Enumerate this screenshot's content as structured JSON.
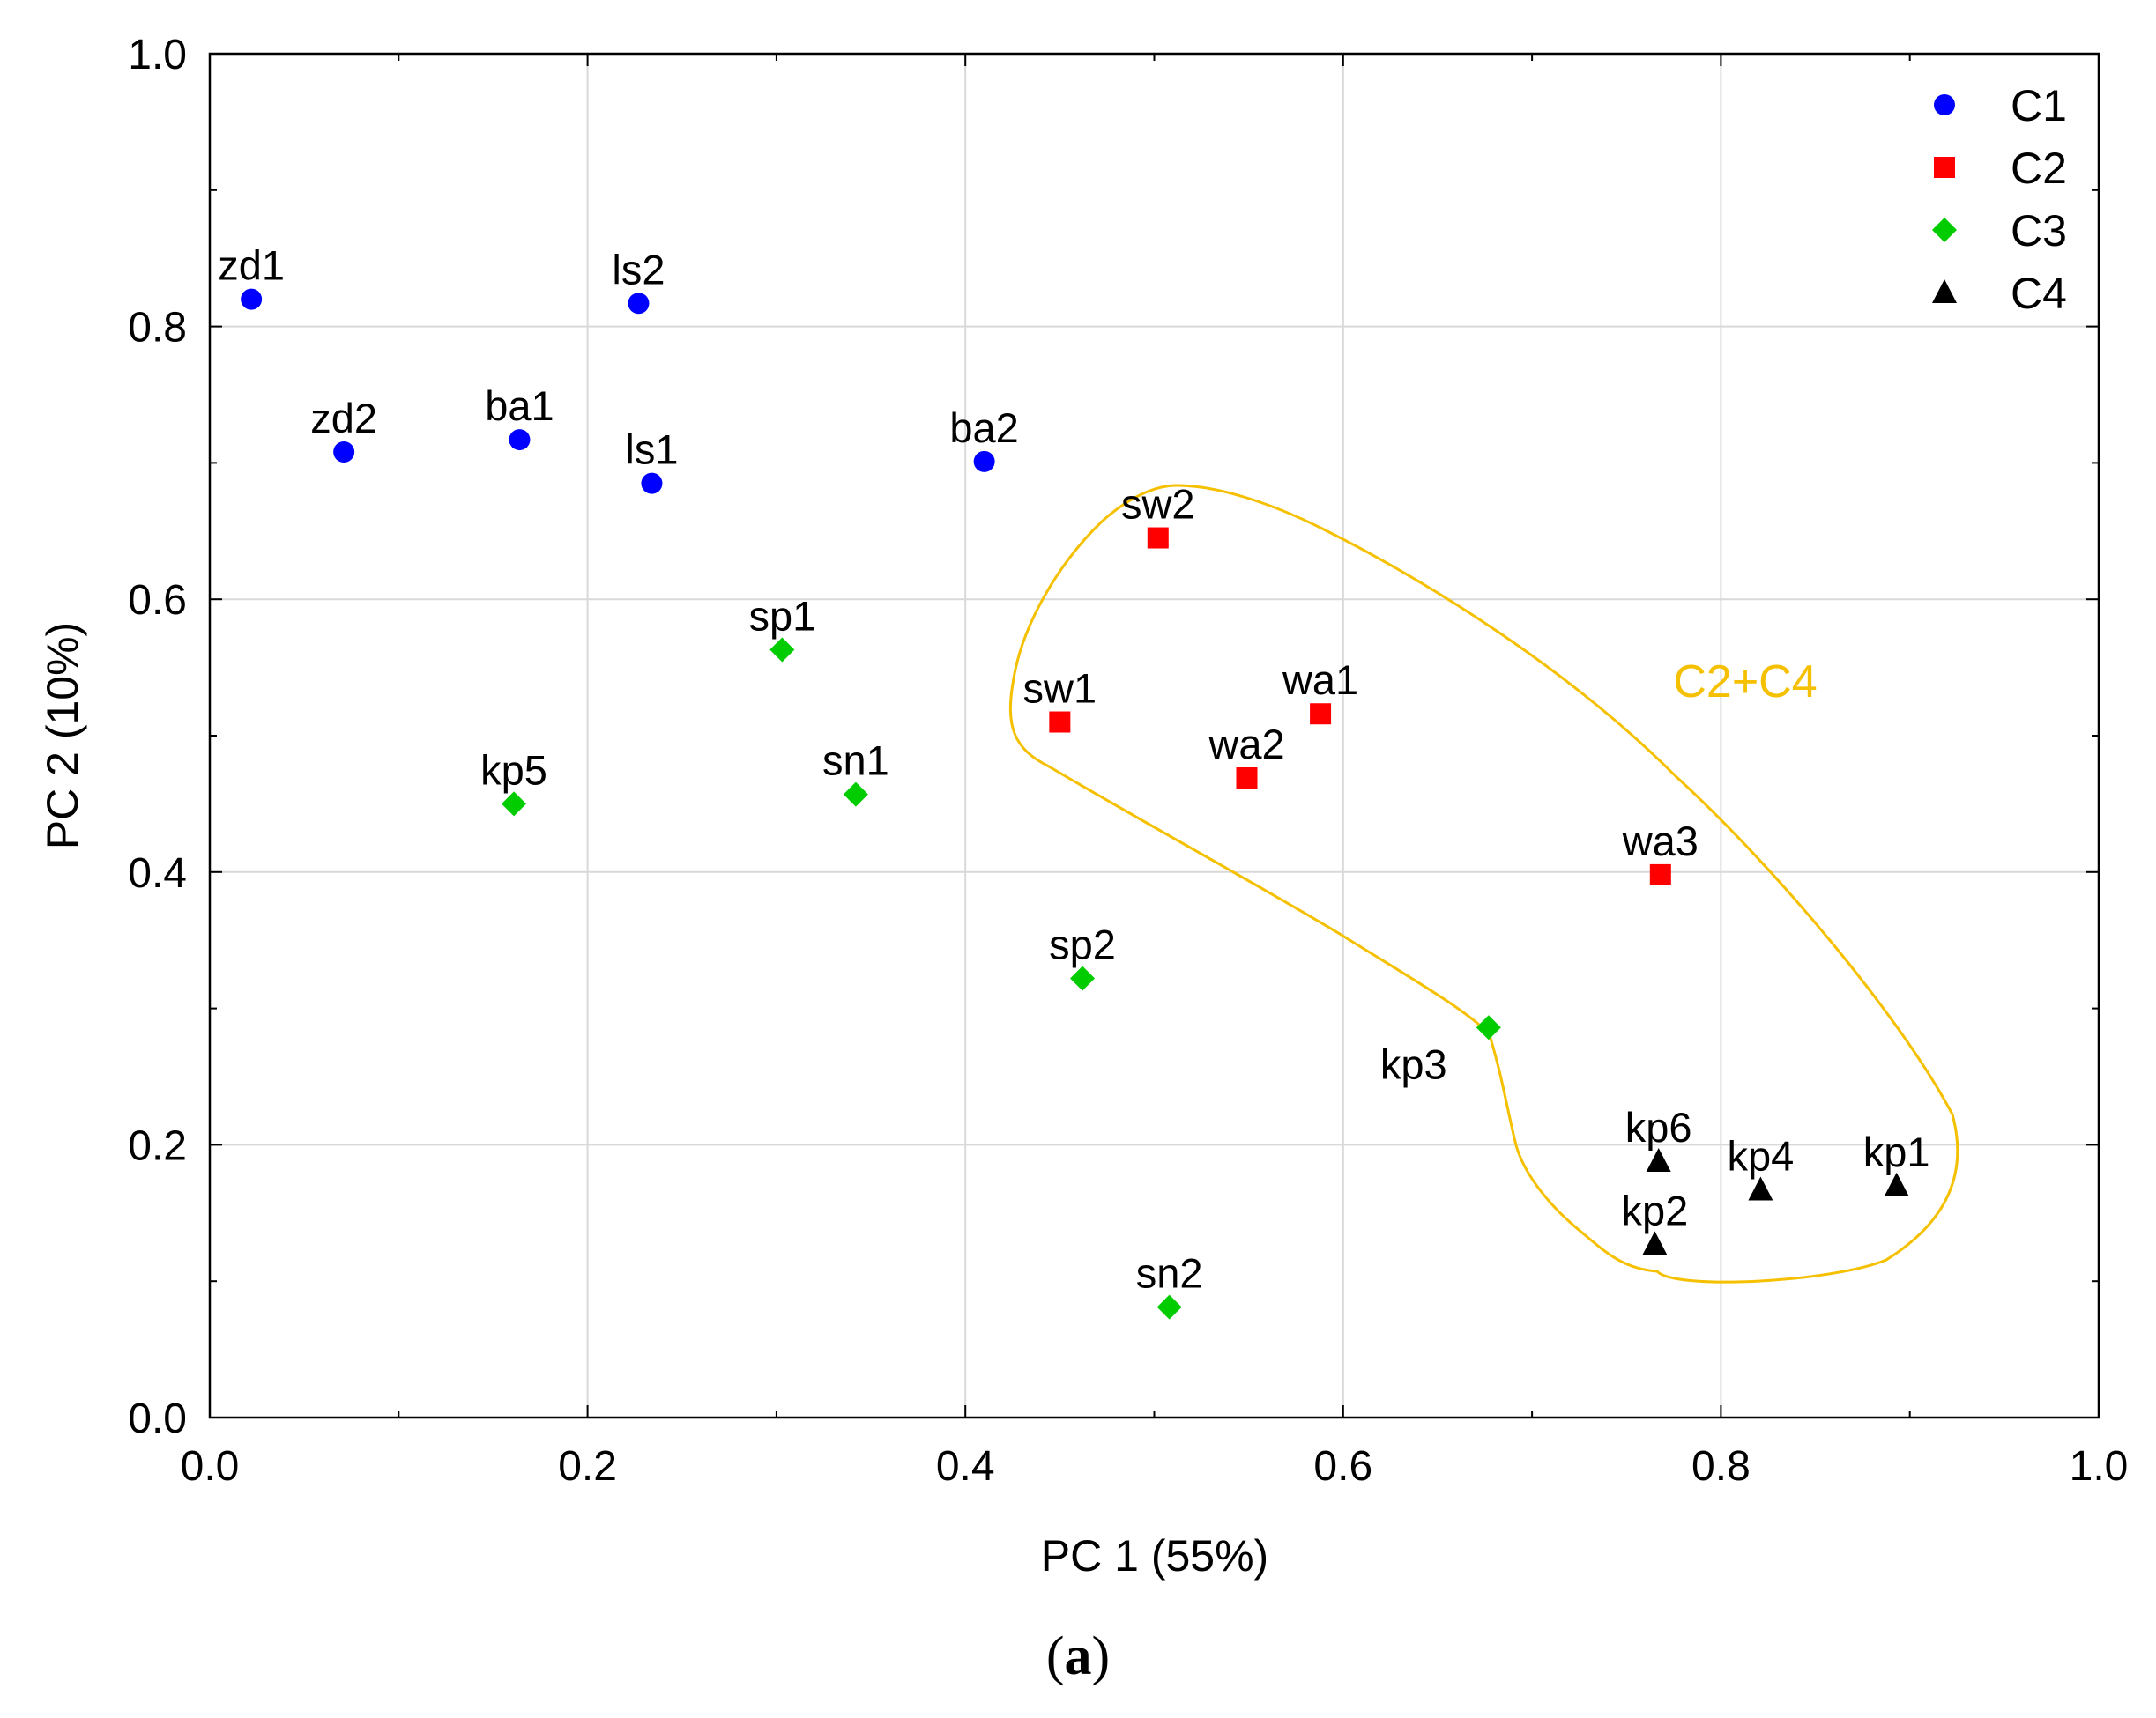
{
  "chart_data": {
    "type": "scatter",
    "xlabel": "PC 1 (55%)",
    "ylabel": "PC 2 (10%)",
    "xlim": [
      0.0,
      1.0
    ],
    "ylim": [
      0.0,
      1.0
    ],
    "xticks": [
      "0.0",
      "0.2",
      "0.4",
      "0.6",
      "0.8",
      "1.0"
    ],
    "yticks": [
      "0.0",
      "0.2",
      "0.4",
      "0.6",
      "0.8",
      "1.0"
    ],
    "grid": true,
    "legend_position": "top-right",
    "caption_open": "(",
    "caption_letter": "a",
    "caption_close": ")",
    "series": [
      {
        "name": "C1",
        "marker": "circle",
        "color": "#0000ff",
        "points": [
          {
            "label": "zd1",
            "x": 0.022,
            "y": 0.82
          },
          {
            "label": "zd2",
            "x": 0.071,
            "y": 0.708
          },
          {
            "label": "ba1",
            "x": 0.164,
            "y": 0.717
          },
          {
            "label": "ls2",
            "x": 0.227,
            "y": 0.817
          },
          {
            "label": "ls1",
            "x": 0.234,
            "y": 0.685
          },
          {
            "label": "ba2",
            "x": 0.41,
            "y": 0.701
          }
        ]
      },
      {
        "name": "C2",
        "marker": "square",
        "color": "#ff0000",
        "points": [
          {
            "label": "sw2",
            "x": 0.502,
            "y": 0.645
          },
          {
            "label": "sw1",
            "x": 0.45,
            "y": 0.51
          },
          {
            "label": "wa1",
            "x": 0.588,
            "y": 0.516
          },
          {
            "label": "wa2",
            "x": 0.549,
            "y": 0.469
          },
          {
            "label": "wa3",
            "x": 0.768,
            "y": 0.398
          }
        ]
      },
      {
        "name": "C3",
        "marker": "diamond",
        "color": "#00cc00",
        "points": [
          {
            "label": "sp1",
            "x": 0.303,
            "y": 0.563
          },
          {
            "label": "sn1",
            "x": 0.342,
            "y": 0.457
          },
          {
            "label": "kp5",
            "x": 0.161,
            "y": 0.45
          },
          {
            "label": "sp2",
            "x": 0.462,
            "y": 0.322
          },
          {
            "label": "kp3",
            "x": 0.677,
            "y": 0.286
          },
          {
            "label": "sn2",
            "x": 0.508,
            "y": 0.081
          }
        ]
      },
      {
        "name": "C4",
        "marker": "triangle",
        "color": "#000000",
        "points": [
          {
            "label": "kp6",
            "x": 0.767,
            "y": 0.188
          },
          {
            "label": "kp2",
            "x": 0.765,
            "y": 0.127
          },
          {
            "label": "kp4",
            "x": 0.821,
            "y": 0.167
          },
          {
            "label": "kp1",
            "x": 0.893,
            "y": 0.17
          }
        ]
      }
    ],
    "annotations": [
      {
        "text": "C2+C4",
        "color": "#f5c000"
      }
    ]
  }
}
